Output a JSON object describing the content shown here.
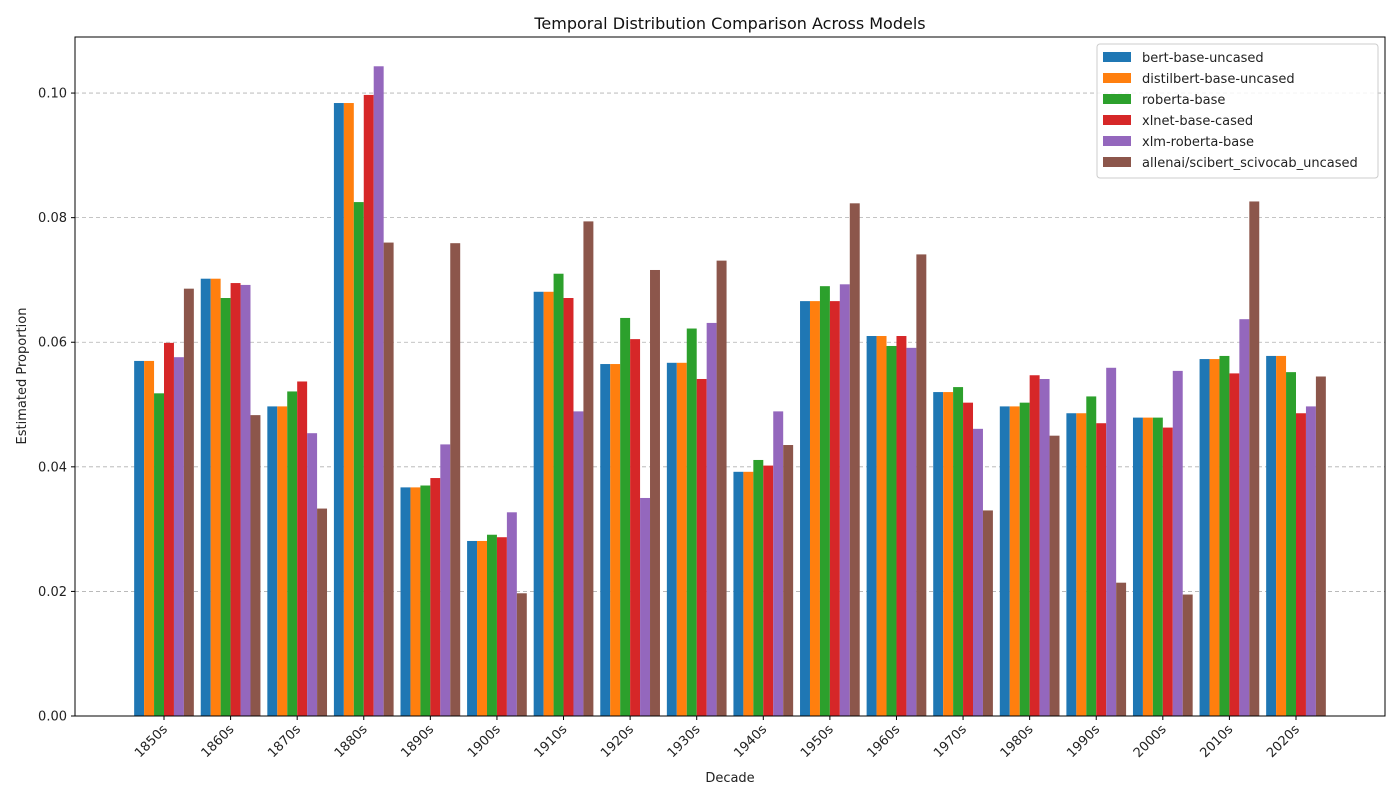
{
  "chart_data": {
    "type": "bar",
    "title": "Temporal Distribution Comparison Across Models",
    "xlabel": "Decade",
    "ylabel": "Estimated Proportion",
    "ylim": [
      0,
      0.109
    ],
    "yticks": [
      "0.00",
      "0.02",
      "0.04",
      "0.06",
      "0.08",
      "0.10"
    ],
    "grid": "y-dashed",
    "legend_position": "top-right",
    "categories": [
      "1850s",
      "1860s",
      "1870s",
      "1880s",
      "1890s",
      "1900s",
      "1910s",
      "1920s",
      "1930s",
      "1940s",
      "1950s",
      "1960s",
      "1970s",
      "1980s",
      "1990s",
      "2000s",
      "2010s",
      "2020s"
    ],
    "series": [
      {
        "name": "bert-base-uncased",
        "color": "#1f77b4",
        "values": [
          0.057,
          0.0702,
          0.0497,
          0.0984,
          0.0367,
          0.0281,
          0.0681,
          0.0565,
          0.0567,
          0.0392,
          0.0666,
          0.061,
          0.052,
          0.0497,
          0.0486,
          0.0479,
          0.0573,
          0.0578
        ]
      },
      {
        "name": "distilbert-base-uncased",
        "color": "#ff7f0e",
        "values": [
          0.057,
          0.0702,
          0.0497,
          0.0984,
          0.0367,
          0.0281,
          0.0681,
          0.0565,
          0.0567,
          0.0392,
          0.0666,
          0.061,
          0.052,
          0.0497,
          0.0486,
          0.0479,
          0.0573,
          0.0578
        ]
      },
      {
        "name": "roberta-base",
        "color": "#2ca02c",
        "values": [
          0.0518,
          0.0671,
          0.0521,
          0.0825,
          0.037,
          0.0291,
          0.071,
          0.0639,
          0.0622,
          0.0411,
          0.069,
          0.0594,
          0.0528,
          0.0503,
          0.0513,
          0.0479,
          0.0578,
          0.0552
        ]
      },
      {
        "name": "xlnet-base-cased",
        "color": "#d62728",
        "values": [
          0.0599,
          0.0695,
          0.0537,
          0.0997,
          0.0382,
          0.0287,
          0.0671,
          0.0605,
          0.0541,
          0.0402,
          0.0666,
          0.061,
          0.0503,
          0.0547,
          0.047,
          0.0463,
          0.055,
          0.0486
        ]
      },
      {
        "name": "xlm-roberta-base",
        "color": "#9467bd",
        "values": [
          0.0576,
          0.0692,
          0.0454,
          0.1043,
          0.0436,
          0.0327,
          0.0489,
          0.035,
          0.0631,
          0.0489,
          0.0693,
          0.0591,
          0.0461,
          0.0541,
          0.0559,
          0.0554,
          0.0637,
          0.0497
        ]
      },
      {
        "name": "allenai/scibert_scivocab_uncased",
        "color": "#8c564b",
        "values": [
          0.0686,
          0.0483,
          0.0333,
          0.076,
          0.0759,
          0.0197,
          0.0794,
          0.0716,
          0.0731,
          0.0435,
          0.0823,
          0.0741,
          0.033,
          0.045,
          0.0214,
          0.0195,
          0.0826,
          0.0545
        ]
      }
    ]
  }
}
